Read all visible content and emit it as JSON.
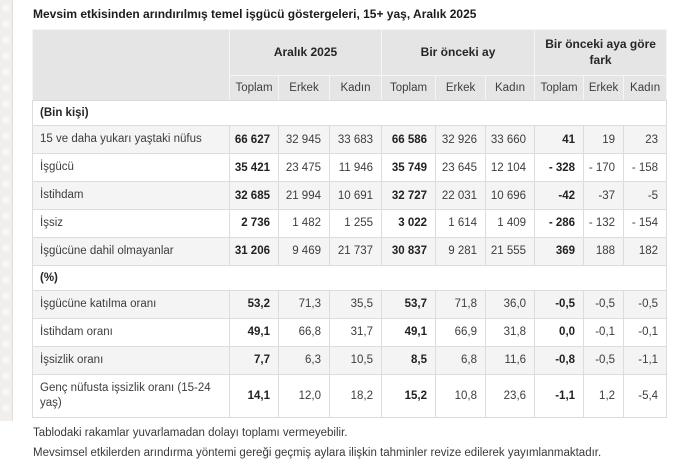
{
  "title": "Mevsim etkisinden arındırılmış temel işgücü göstergeleri, 15+ yaş, Aralık 2025",
  "chart_data": {
    "type": "table",
    "title": "Mevsim etkisinden arındırılmış temel işgücü göstergeleri, 15+ yaş, Aralık 2025",
    "column_groups": [
      "Aralık 2025",
      "Bir önceki ay",
      "Bir önceki aya göre fark"
    ],
    "sub_columns": [
      "Toplam",
      "Erkek",
      "Kadın"
    ],
    "sections": [
      {
        "label": "(Bin kişi)",
        "rows": [
          {
            "label": "15 ve daha yukarı yaştaki nüfus",
            "values": [
              "66 627",
              "32 945",
              "33 683",
              "66 586",
              "32 926",
              "33 660",
              "41",
              "19",
              "23"
            ]
          },
          {
            "label": "İşgücü",
            "values": [
              "35 421",
              "23 475",
              "11 946",
              "35 749",
              "23 645",
              "12 104",
              "- 328",
              "- 170",
              "- 158"
            ]
          },
          {
            "label": "İstihdam",
            "values": [
              "32 685",
              "21 994",
              "10 691",
              "32 727",
              "22 031",
              "10 696",
              "-42",
              "-37",
              "-5"
            ]
          },
          {
            "label": "İşsiz",
            "values": [
              "2 736",
              "1 482",
              "1 255",
              "3 022",
              "1 614",
              "1 409",
              "- 286",
              "- 132",
              "- 154"
            ]
          },
          {
            "label": "İşgücüne dahil olmayanlar",
            "values": [
              "31 206",
              "9 469",
              "21 737",
              "30 837",
              "9 281",
              "21 555",
              "369",
              "188",
              "182"
            ]
          }
        ]
      },
      {
        "label": "(%)",
        "rows": [
          {
            "label": "İşgücüne katılma oranı",
            "values": [
              "53,2",
              "71,3",
              "35,5",
              "53,7",
              "71,8",
              "36,0",
              "-0,5",
              "-0,5",
              "-0,5"
            ]
          },
          {
            "label": "İstihdam oranı",
            "values": [
              "49,1",
              "66,8",
              "31,7",
              "49,1",
              "66,9",
              "31,8",
              "0,0",
              "-0,1",
              "-0,1"
            ]
          },
          {
            "label": "İşsizlik oranı",
            "values": [
              "7,7",
              "6,3",
              "10,5",
              "8,5",
              "6,8",
              "11,6",
              "-0,8",
              "-0,5",
              "-1,1"
            ]
          },
          {
            "label": "Genç nüfusta işsizlik oranı (15-24 yaş)",
            "values": [
              "14,1",
              "12,0",
              "18,2",
              "15,2",
              "10,8",
              "23,6",
              "-1,1",
              "1,2",
              "-5,4"
            ]
          }
        ]
      }
    ]
  },
  "notes": [
    "Tablodaki rakamlar yuvarlamadan dolayı toplamı vermeyebilir.",
    "Mevsimsel etkilerden arındırma yöntemi gereği geçmiş aylara ilişkin tahminler revize edilerek yayımlanmaktadır."
  ],
  "colors": {
    "header_bg": "#e5e5e5",
    "row_alt_bg": "#f4f4f4",
    "border": "#dcdcdc",
    "side_strip_bg": "#f2eeec"
  }
}
